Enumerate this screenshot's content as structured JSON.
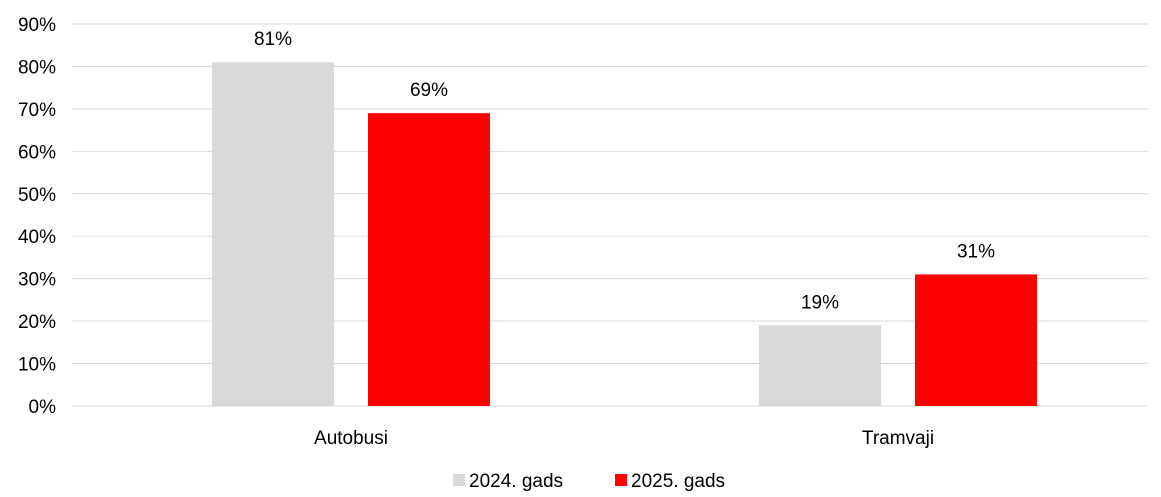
{
  "chart_data": {
    "type": "bar",
    "categories": [
      "Autobusi",
      "Tramvaji"
    ],
    "series": [
      {
        "name": "2024. gads",
        "values": [
          81,
          19
        ],
        "color": "#D9D9D9"
      },
      {
        "name": "2025. gads",
        "values": [
          69,
          31
        ],
        "color": "#FF0000"
      }
    ],
    "value_suffix": "%",
    "ylim": [
      0,
      90
    ],
    "y_ticks": [
      "0%",
      "10%",
      "20%",
      "30%",
      "40%",
      "50%",
      "60%",
      "70%",
      "80%",
      "90%"
    ],
    "data_labels": [
      [
        "81%",
        "19%"
      ],
      [
        "69%",
        "31%"
      ]
    ],
    "grid": true,
    "legend_position": "bottom"
  }
}
